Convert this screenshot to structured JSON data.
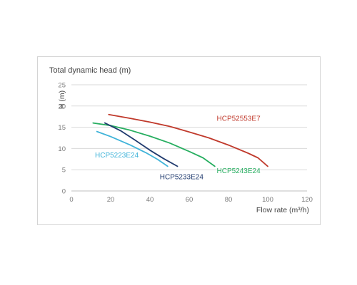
{
  "chart_data": {
    "type": "line",
    "title": "Total dynamic head (m)",
    "xlabel": "Flow rate (m³/h)",
    "ylabel": "H (m)",
    "xlim": [
      0,
      120
    ],
    "ylim": [
      0,
      25
    ],
    "xticks": [
      0,
      20,
      40,
      60,
      80,
      100,
      120
    ],
    "yticks": [
      0,
      5,
      10,
      15,
      20,
      25
    ],
    "grid": "horizontal",
    "colors": {
      "gridline": "#d9d9d9",
      "axis": "#bfbfbf",
      "tick_text": "#7a7a7a"
    },
    "series": [
      {
        "name": "HCP52553E7",
        "color": "#c0392b",
        "x": [
          19,
          30,
          40,
          50,
          60,
          70,
          80,
          90,
          95,
          100
        ],
        "y": [
          18.0,
          17.1,
          16.2,
          15.2,
          13.9,
          12.5,
          10.8,
          8.9,
          7.8,
          5.8
        ]
      },
      {
        "name": "HCP5243E24",
        "color": "#27ae60",
        "x": [
          11,
          20,
          30,
          40,
          50,
          60,
          67,
          73
        ],
        "y": [
          16.0,
          15.4,
          14.3,
          12.9,
          11.3,
          9.3,
          7.8,
          5.8
        ]
      },
      {
        "name": "HCP5233E24",
        "color": "#1f3a6e",
        "x": [
          17,
          25,
          32,
          40,
          47,
          54
        ],
        "y": [
          16.0,
          14.2,
          12.1,
          9.6,
          7.6,
          5.8
        ]
      },
      {
        "name": "HCP5223E24",
        "color": "#3fb3d9",
        "x": [
          13,
          20,
          30,
          38,
          44,
          49
        ],
        "y": [
          14.0,
          12.8,
          10.8,
          9.0,
          7.4,
          5.8
        ]
      }
    ],
    "series_labels": [
      {
        "text": "HCP52553E7",
        "anchor_x": 74,
        "anchor_y": 16.5,
        "color": "#c0392b"
      },
      {
        "text": "HCP5243E24",
        "anchor_x": 74,
        "anchor_y": 4.2,
        "color": "#27ae60"
      },
      {
        "text": "HCP5233E24",
        "anchor_x": 45,
        "anchor_y": 2.8,
        "color": "#1f3a6e"
      },
      {
        "text": "HCP5223E24",
        "anchor_x": 12,
        "anchor_y": 7.9,
        "color": "#3fb3d9"
      }
    ]
  }
}
